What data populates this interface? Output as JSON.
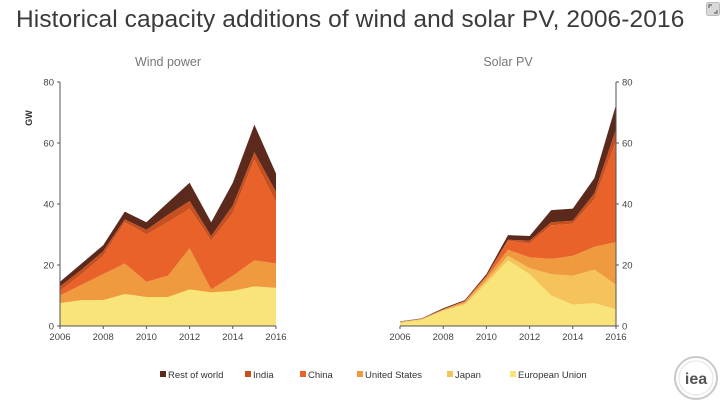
{
  "page": {
    "title": "Historical capacity additions of wind and solar PV, 2006-2016"
  },
  "logo": {
    "text": "iea"
  },
  "icons": {
    "corner": "expand-icon"
  },
  "chart_data": {
    "type": "area",
    "stacked": true,
    "x": [
      2006,
      2007,
      2008,
      2009,
      2010,
      2011,
      2012,
      2013,
      2014,
      2015,
      2016
    ],
    "x_ticks": [
      2006,
      2008,
      2010,
      2012,
      2014,
      2016
    ],
    "y_ticks": [
      0,
      20,
      40,
      60,
      80
    ],
    "ylim": [
      0,
      80
    ],
    "ylabel": "GW",
    "legend_position": "bottom",
    "legend": [
      {
        "name": "Rest of world",
        "color": "#5c2a1d"
      },
      {
        "name": "India",
        "color": "#c8501f"
      },
      {
        "name": "China",
        "color": "#e9622a"
      },
      {
        "name": "United States",
        "color": "#ef9a3f"
      },
      {
        "name": "Japan",
        "color": "#f6c35a"
      },
      {
        "name": "European Union",
        "color": "#f9e47a"
      }
    ],
    "panels": [
      {
        "title": "Wind power",
        "series": [
          {
            "name": "European Union",
            "color": "#f9e47a",
            "values": [
              7.5,
              8.5,
              8.5,
              10.5,
              9.5,
              9.5,
              12,
              11,
              11.5,
              13,
              12.5
            ]
          },
          {
            "name": "Japan",
            "color": "#f6c35a",
            "values": [
              0,
              0,
              0,
              0,
              0,
              0,
              0,
              0,
              0,
              0,
              0
            ]
          },
          {
            "name": "United States",
            "color": "#ef9a3f",
            "values": [
              2.5,
              5,
              8.5,
              10,
              5,
              7,
              13.5,
              1,
              5,
              8.5,
              8
            ]
          },
          {
            "name": "China",
            "color": "#e9622a",
            "values": [
              1.5,
              3.5,
              6,
              13.5,
              15.5,
              17.5,
              13,
              16,
              20.5,
              33,
              20
            ]
          },
          {
            "name": "India",
            "color": "#c8501f",
            "values": [
              1.5,
              1.5,
              1.5,
              1,
              1.5,
              2.5,
              2.5,
              1.5,
              2.5,
              2.5,
              3.5
            ]
          },
          {
            "name": "Rest of world",
            "color": "#5c2a1d",
            "values": [
              1.5,
              2,
              2,
              2.5,
              2.5,
              4,
              6,
              4.5,
              7.5,
              9,
              6
            ]
          }
        ]
      },
      {
        "title": "Solar PV",
        "series": [
          {
            "name": "European Union",
            "color": "#f9e47a",
            "values": [
              1,
              2,
              5,
              7,
              14,
              21.5,
              17,
              10,
              7,
              7.5,
              5.5
            ]
          },
          {
            "name": "Japan",
            "color": "#f6c35a",
            "values": [
              0.3,
              0.2,
              0.2,
              0.5,
              1,
              1.5,
              2,
              7,
              9.5,
              11,
              8
            ]
          },
          {
            "name": "United States",
            "color": "#ef9a3f",
            "values": [
              0.1,
              0.2,
              0.3,
              0.5,
              1,
              2,
              3.5,
              5,
              6.5,
              7.5,
              14
            ]
          },
          {
            "name": "China",
            "color": "#e9622a",
            "values": [
              0,
              0,
              0,
              0.2,
              0.5,
              3,
              4.5,
              11,
              10.5,
              15.5,
              33
            ]
          },
          {
            "name": "India",
            "color": "#c8501f",
            "values": [
              0,
              0,
              0,
              0,
              0,
              0.3,
              1,
              1,
              1,
              2,
              4
            ]
          },
          {
            "name": "Rest of world",
            "color": "#5c2a1d",
            "values": [
              0.1,
              0.1,
              0.3,
              0.3,
              0.5,
              1.5,
              1.5,
              4,
              4,
              5,
              8
            ]
          }
        ]
      }
    ]
  }
}
